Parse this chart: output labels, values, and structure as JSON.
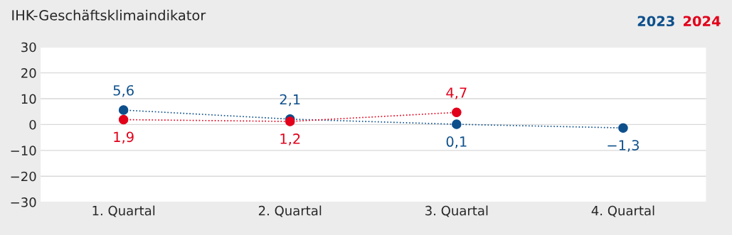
{
  "chart_data": {
    "type": "line",
    "title": "IHK-Geschäftsklimaindikator",
    "categories": [
      "1. Quartal",
      "2. Quartal",
      "3. Quartal",
      "4. Quartal"
    ],
    "series": [
      {
        "name": "2023",
        "color": "#0d4f8b",
        "values": [
          5.6,
          2.1,
          0.1,
          -1.3
        ],
        "value_labels": [
          "5,6",
          "2,1",
          "0,1",
          "−1,3"
        ]
      },
      {
        "name": "2024",
        "color": "#e2001a",
        "values": [
          1.9,
          1.2,
          4.7,
          null
        ],
        "value_labels": [
          "1,9",
          "1,2",
          "4,7",
          null
        ]
      }
    ],
    "ylim": [
      -30,
      30
    ],
    "yticks": [
      {
        "value": -30,
        "label": "−30"
      },
      {
        "value": -20,
        "label": "−20"
      },
      {
        "value": -10,
        "label": "−10"
      },
      0,
      10,
      20,
      30
    ],
    "grid": "y",
    "legend": "top right",
    "marker": "circle",
    "line_style": "dotted"
  }
}
